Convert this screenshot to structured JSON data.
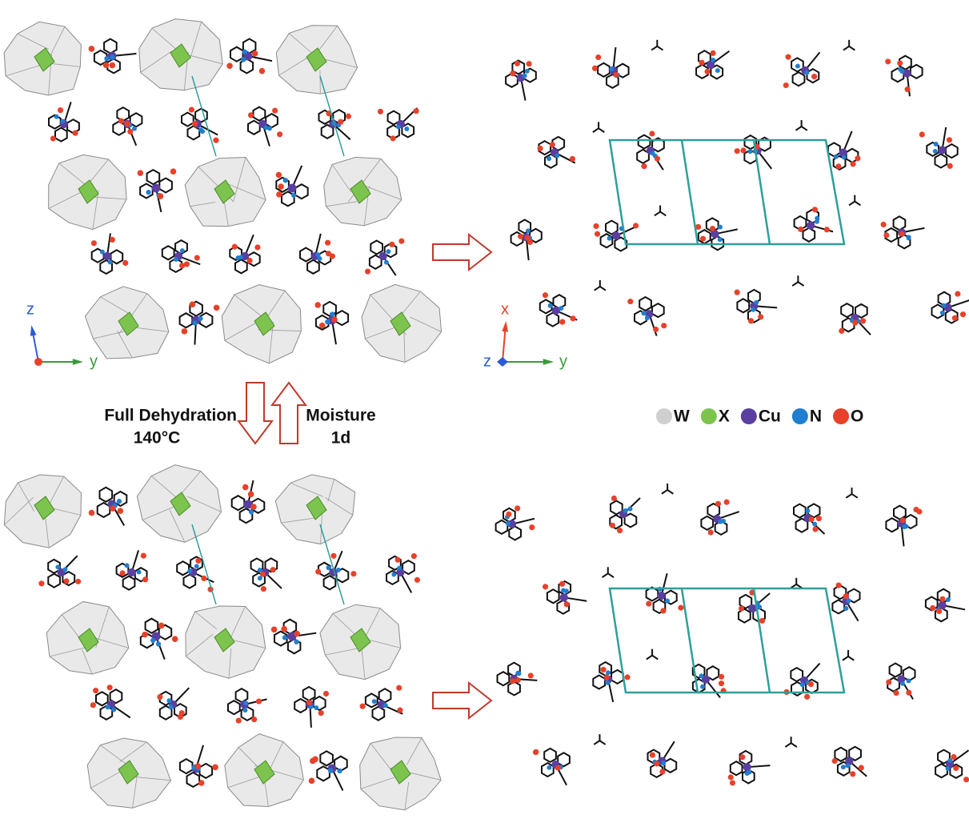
{
  "panels": [
    {
      "axes": {
        "vertical": {
          "label": "z",
          "color": "#2a5bd7"
        },
        "horizontal": {
          "label": "y",
          "color": "#3a9a3a"
        },
        "origin_color": "#e8412a"
      }
    },
    {
      "axes": {
        "vertical": {
          "label": "x",
          "color": "#e8412a"
        },
        "horizontal": {
          "label": "y",
          "color": "#3a9a3a"
        },
        "out": {
          "label": "z",
          "color": "#2a5bd7"
        }
      }
    }
  ],
  "transition": {
    "forward": {
      "label": "Full Dehydration",
      "condition": "140°C"
    },
    "reverse": {
      "label": "Moisture",
      "condition": "1d"
    }
  },
  "legend": [
    {
      "label": "W",
      "color": "#cfcfcf"
    },
    {
      "label": "X",
      "color": "#7cc44e"
    },
    {
      "label": "Cu",
      "color": "#5a3fa0"
    },
    {
      "label": "N",
      "color": "#1f7fd0"
    },
    {
      "label": "O",
      "color": "#e8412a"
    }
  ]
}
